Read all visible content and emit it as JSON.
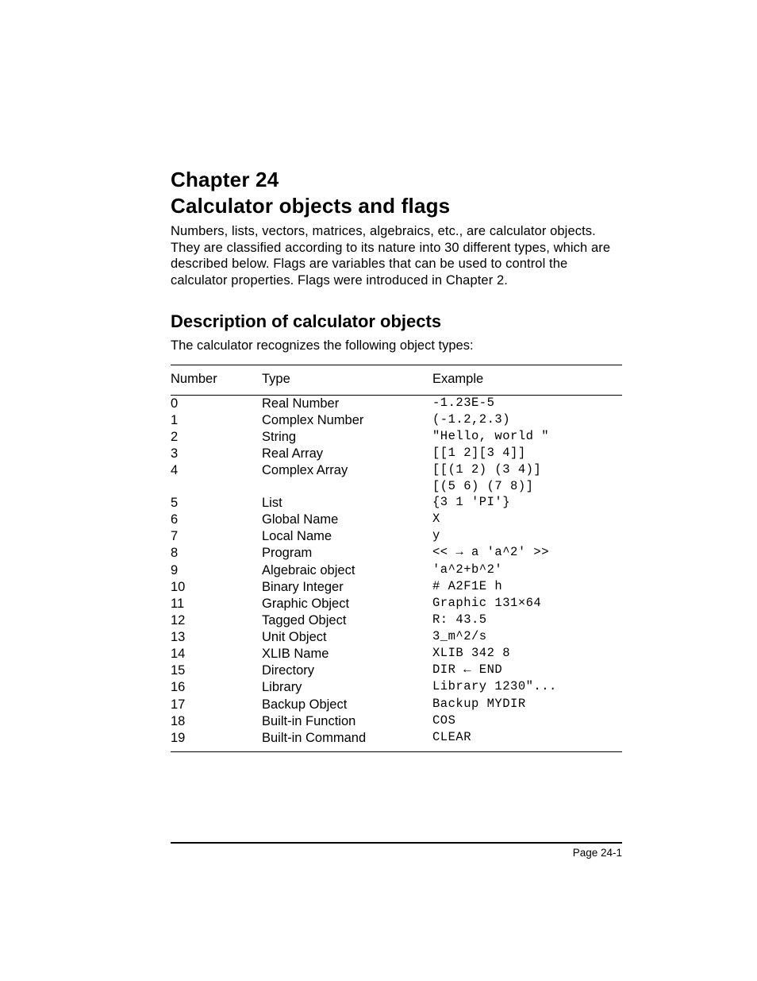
{
  "chapter": {
    "line1": "Chapter 24",
    "line2": "Calculator objects and flags"
  },
  "intro": "Numbers, lists, vectors, matrices, algebraics, etc., are calculator objects.  They are classified according to its nature into 30 different types, which are described below.   Flags are variables that can be used to control the calculator properties.  Flags were introduced in Chapter 2.",
  "section": {
    "heading": "Description of calculator objects",
    "intro": "The calculator recognizes the following object types:"
  },
  "table": {
    "headers": {
      "number": "Number",
      "type": "Type",
      "example": "Example"
    },
    "rows": [
      {
        "n": "0",
        "t": "Real Number",
        "e": "-1.23E-5"
      },
      {
        "n": "1",
        "t": "Complex Number",
        "e": "(-1.2,2.3)"
      },
      {
        "n": "2",
        "t": "String",
        "e": "\"Hello, world \""
      },
      {
        "n": "3",
        "t": "Real Array",
        "e": "[[1 2][3 4]]"
      },
      {
        "n": "4",
        "t": "Complex Array",
        "e": "[[(1 2) (3 4)]"
      },
      {
        "n": "",
        "t": "",
        "e": " [(5 6) (7 8)]"
      },
      {
        "n": "5",
        "t": "List",
        "e": "{3 1 'PI'}"
      },
      {
        "n": "6",
        "t": "Global Name",
        "e": "X"
      },
      {
        "n": "7",
        "t": "Local Name",
        "e": "y"
      },
      {
        "n": "8",
        "t": "Program",
        "e": "<< → a 'a^2' >>"
      },
      {
        "n": "9",
        "t": "Algebraic object",
        "e": "'a^2+b^2'"
      },
      {
        "n": "10",
        "t": "Binary Integer",
        "e": "# A2F1E h",
        "gap": true
      },
      {
        "n": "11",
        "t": "Graphic Object",
        "e": "Graphic 131×64"
      },
      {
        "n": "12",
        "t": "Tagged Object",
        "e": "R: 43.5"
      },
      {
        "n": "13",
        "t": "Unit Object",
        "e": "3_m^2/s"
      },
      {
        "n": "14",
        "t": "XLIB Name",
        "e": "XLIB 342 8"
      },
      {
        "n": "15",
        "t": "Directory",
        "e": "DIR ← END"
      },
      {
        "n": "16",
        "t": "Library",
        "e": "Library 1230\"..."
      },
      {
        "n": "17",
        "t": "Backup Object",
        "e": "Backup MYDIR"
      },
      {
        "n": "18",
        "t": "Built-in Function",
        "e": "COS"
      },
      {
        "n": "19",
        "t": "Built-in Command",
        "e": "CLEAR",
        "gap": true
      }
    ]
  },
  "footer": "Page 24-1"
}
